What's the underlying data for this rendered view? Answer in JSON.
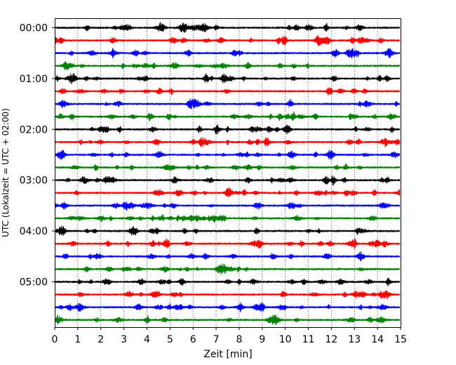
{
  "chart_data": {
    "type": "line",
    "title": "",
    "xlabel": "Zeit  [min]",
    "ylabel": "UTC (Lokalzeit = UTC + 02:00)",
    "xlim": [
      0,
      15
    ],
    "x_ticks": [
      0,
      1,
      2,
      3,
      4,
      5,
      6,
      7,
      8,
      9,
      10,
      11,
      12,
      13,
      14,
      15
    ],
    "y_ticks": [
      "00:00",
      "01:00",
      "02:00",
      "03:00",
      "04:00",
      "05:00"
    ],
    "trace_interval_minutes": 15,
    "trace_count": 24,
    "trace_colors": [
      "#000000",
      "#ff0000",
      "#0000ff",
      "#008000"
    ],
    "grid_x": true,
    "notable_events": [
      {
        "trace": 0,
        "x": 11.8,
        "amplitude": 0.9
      },
      {
        "trace": 2,
        "x": 2.5,
        "amplitude": 0.7
      },
      {
        "trace": 8,
        "x": 2.8,
        "amplitude": 0.7
      },
      {
        "trace": 8,
        "x": 7.0,
        "amplitude": 0.6
      },
      {
        "trace": 12,
        "x": 12.1,
        "amplitude": 0.8
      },
      {
        "trace": 16,
        "x": 0.3,
        "amplitude": 0.6
      },
      {
        "trace": 20,
        "x": 14.5,
        "amplitude": 0.9
      },
      {
        "trace": 20,
        "x": 5.5,
        "amplitude": 0.6
      },
      {
        "trace": 22,
        "x": 9.0,
        "amplitude": 0.6
      },
      {
        "trace": 23,
        "x": 4.0,
        "amplitude": 1.0
      }
    ]
  }
}
